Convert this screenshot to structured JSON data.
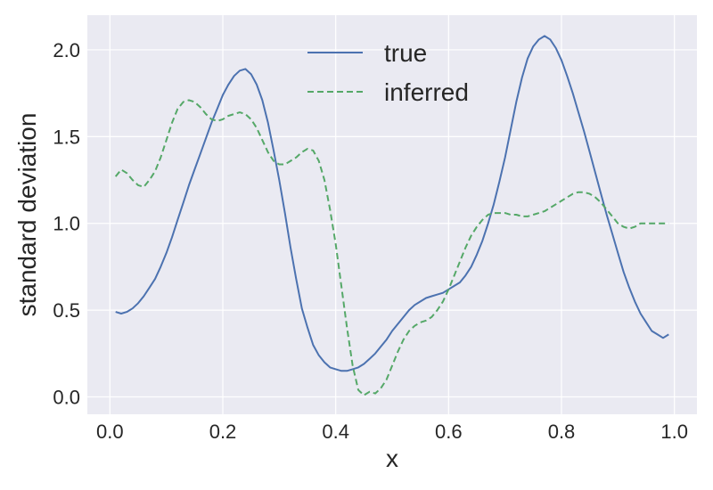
{
  "chart_data": {
    "type": "line",
    "xlabel": "x",
    "ylabel": "standard deviation",
    "xlim": [
      -0.04,
      1.04
    ],
    "ylim": [
      -0.1,
      2.2
    ],
    "xticks": [
      0.0,
      0.2,
      0.4,
      0.6,
      0.8,
      1.0
    ],
    "xtick_labels": [
      "0.0",
      "0.2",
      "0.4",
      "0.6",
      "0.8",
      "1.0"
    ],
    "yticks": [
      0.0,
      0.5,
      1.0,
      1.5,
      2.0
    ],
    "ytick_labels": [
      "0.0",
      "0.5",
      "1.0",
      "1.5",
      "2.0"
    ],
    "grid": true,
    "legend_position": "top-center",
    "colors": {
      "background": "#EAEAF2",
      "grid": "#FFFFFF",
      "true": "#4C72B0",
      "inferred": "#55A868"
    },
    "series": [
      {
        "name": "true",
        "style": "solid",
        "x": [
          0.01,
          0.02,
          0.03,
          0.04,
          0.05,
          0.06,
          0.07,
          0.08,
          0.09,
          0.1,
          0.11,
          0.12,
          0.13,
          0.14,
          0.15,
          0.16,
          0.17,
          0.18,
          0.19,
          0.2,
          0.21,
          0.22,
          0.23,
          0.24,
          0.25,
          0.26,
          0.27,
          0.28,
          0.29,
          0.3,
          0.31,
          0.32,
          0.33,
          0.34,
          0.35,
          0.36,
          0.37,
          0.38,
          0.39,
          0.4,
          0.41,
          0.42,
          0.43,
          0.44,
          0.45,
          0.46,
          0.47,
          0.48,
          0.49,
          0.5,
          0.51,
          0.52,
          0.53,
          0.54,
          0.55,
          0.56,
          0.57,
          0.58,
          0.59,
          0.6,
          0.61,
          0.62,
          0.63,
          0.64,
          0.65,
          0.66,
          0.67,
          0.68,
          0.69,
          0.7,
          0.71,
          0.72,
          0.73,
          0.74,
          0.75,
          0.76,
          0.77,
          0.78,
          0.79,
          0.8,
          0.81,
          0.82,
          0.83,
          0.84,
          0.85,
          0.86,
          0.87,
          0.88,
          0.89,
          0.9,
          0.91,
          0.92,
          0.93,
          0.94,
          0.95,
          0.96,
          0.97,
          0.98,
          0.99
        ],
        "values": [
          0.49,
          0.48,
          0.49,
          0.51,
          0.54,
          0.58,
          0.63,
          0.68,
          0.75,
          0.83,
          0.92,
          1.02,
          1.12,
          1.22,
          1.31,
          1.4,
          1.49,
          1.58,
          1.66,
          1.74,
          1.8,
          1.85,
          1.88,
          1.89,
          1.86,
          1.8,
          1.71,
          1.58,
          1.42,
          1.25,
          1.06,
          0.86,
          0.68,
          0.51,
          0.4,
          0.3,
          0.24,
          0.2,
          0.17,
          0.16,
          0.15,
          0.15,
          0.16,
          0.17,
          0.19,
          0.22,
          0.25,
          0.29,
          0.33,
          0.38,
          0.42,
          0.46,
          0.5,
          0.53,
          0.55,
          0.57,
          0.58,
          0.59,
          0.6,
          0.62,
          0.64,
          0.66,
          0.7,
          0.75,
          0.82,
          0.9,
          1.0,
          1.11,
          1.24,
          1.38,
          1.54,
          1.7,
          1.84,
          1.95,
          2.02,
          2.06,
          2.08,
          2.06,
          2.01,
          1.94,
          1.85,
          1.75,
          1.64,
          1.53,
          1.41,
          1.29,
          1.17,
          1.05,
          0.94,
          0.83,
          0.72,
          0.63,
          0.55,
          0.48,
          0.43,
          0.38,
          0.36,
          0.34,
          0.36
        ]
      },
      {
        "name": "inferred",
        "style": "dashed",
        "x": [
          0.01,
          0.02,
          0.03,
          0.04,
          0.05,
          0.06,
          0.07,
          0.08,
          0.09,
          0.1,
          0.11,
          0.12,
          0.13,
          0.14,
          0.15,
          0.16,
          0.17,
          0.18,
          0.19,
          0.2,
          0.21,
          0.22,
          0.23,
          0.24,
          0.25,
          0.26,
          0.27,
          0.28,
          0.29,
          0.3,
          0.31,
          0.32,
          0.33,
          0.34,
          0.35,
          0.36,
          0.37,
          0.38,
          0.39,
          0.4,
          0.41,
          0.42,
          0.43,
          0.44,
          0.45,
          0.46,
          0.47,
          0.48,
          0.49,
          0.5,
          0.51,
          0.52,
          0.53,
          0.54,
          0.55,
          0.56,
          0.57,
          0.58,
          0.59,
          0.6,
          0.61,
          0.62,
          0.63,
          0.64,
          0.65,
          0.66,
          0.67,
          0.68,
          0.69,
          0.7,
          0.71,
          0.72,
          0.73,
          0.74,
          0.75,
          0.76,
          0.77,
          0.78,
          0.79,
          0.8,
          0.81,
          0.82,
          0.83,
          0.84,
          0.85,
          0.86,
          0.87,
          0.88,
          0.89,
          0.9,
          0.91,
          0.92,
          0.93,
          0.94,
          0.95,
          0.96,
          0.97,
          0.98,
          0.99
        ],
        "values": [
          1.27,
          1.31,
          1.29,
          1.25,
          1.22,
          1.21,
          1.25,
          1.3,
          1.38,
          1.48,
          1.58,
          1.66,
          1.7,
          1.71,
          1.7,
          1.67,
          1.63,
          1.6,
          1.59,
          1.6,
          1.62,
          1.63,
          1.64,
          1.63,
          1.6,
          1.55,
          1.48,
          1.41,
          1.36,
          1.34,
          1.34,
          1.36,
          1.38,
          1.41,
          1.43,
          1.42,
          1.36,
          1.25,
          1.08,
          0.88,
          0.64,
          0.4,
          0.18,
          0.04,
          0.01,
          0.03,
          0.02,
          0.05,
          0.1,
          0.18,
          0.26,
          0.33,
          0.38,
          0.41,
          0.43,
          0.44,
          0.46,
          0.5,
          0.55,
          0.62,
          0.7,
          0.78,
          0.86,
          0.93,
          0.98,
          1.02,
          1.05,
          1.06,
          1.06,
          1.06,
          1.05,
          1.05,
          1.04,
          1.04,
          1.05,
          1.06,
          1.07,
          1.09,
          1.11,
          1.13,
          1.15,
          1.17,
          1.18,
          1.18,
          1.17,
          1.15,
          1.12,
          1.08,
          1.04,
          1.0,
          0.98,
          0.97,
          0.98,
          1.0,
          1.0,
          1.0,
          1.0,
          1.0,
          1.0
        ]
      }
    ]
  }
}
